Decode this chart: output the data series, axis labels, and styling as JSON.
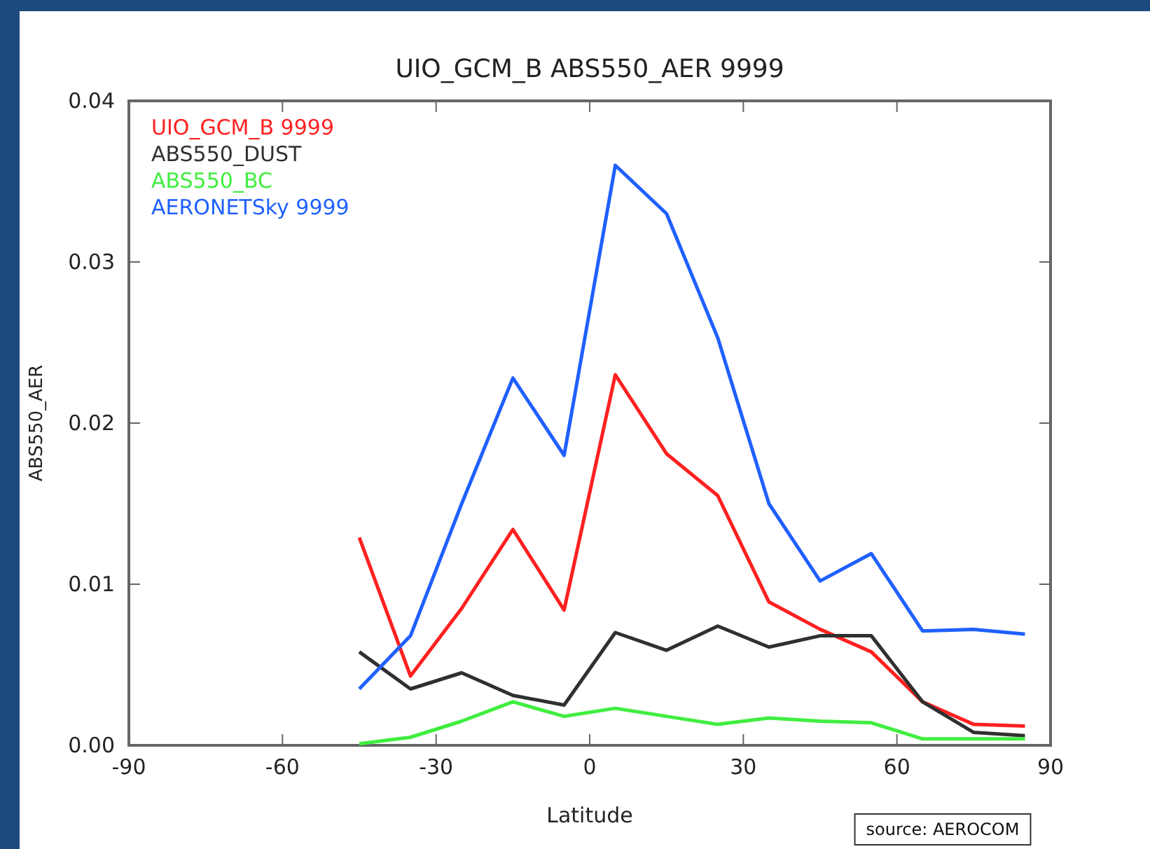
{
  "chart_data": {
    "type": "line",
    "title": "UIO_GCM_B ABS550_AER 9999",
    "xlabel": "Latitude",
    "ylabel": "ABS550_AER",
    "x": [
      -45,
      -35,
      -25,
      -15,
      -5,
      5,
      15,
      25,
      35,
      45,
      55,
      65,
      75,
      85
    ],
    "series": [
      {
        "name": "UIO_GCM_B 9999",
        "color": "#ff2020",
        "values": [
          0.0129,
          0.0043,
          0.0085,
          0.0134,
          0.0084,
          0.023,
          0.0181,
          0.0155,
          0.0089,
          0.0072,
          0.0058,
          0.0027,
          0.0013,
          0.0012
        ]
      },
      {
        "name": "ABS550_DUST",
        "color": "#303030",
        "values": [
          0.0058,
          0.0035,
          0.0045,
          0.0031,
          0.0025,
          0.007,
          0.0059,
          0.0074,
          0.0061,
          0.0068,
          0.0068,
          0.0027,
          0.0008,
          0.0006
        ]
      },
      {
        "name": "ABS550_BC",
        "color": "#40ee40",
        "values": [
          0.0001,
          0.0005,
          0.0015,
          0.0027,
          0.0018,
          0.0023,
          0.0018,
          0.0013,
          0.0017,
          0.0015,
          0.0014,
          0.0004,
          0.0004,
          0.0004
        ]
      },
      {
        "name": "AERONETSky 9999",
        "color": "#2060ff",
        "values": [
          0.0035,
          0.0068,
          0.015,
          0.0228,
          0.018,
          0.036,
          0.033,
          0.0253,
          0.015,
          0.0102,
          0.0119,
          0.0071,
          0.0072,
          0.0069
        ]
      }
    ],
    "xlim": [
      -90,
      90
    ],
    "xticks": [
      -90,
      -60,
      -30,
      0,
      30,
      60,
      90
    ],
    "ylim": [
      0,
      0.04
    ],
    "yticks": [
      {
        "value": 0,
        "label": "0.00"
      },
      0.01,
      0.02,
      0.03,
      0.04
    ],
    "legend": "top left",
    "grid": false,
    "annotations": [
      "source: AEROCOM"
    ]
  }
}
